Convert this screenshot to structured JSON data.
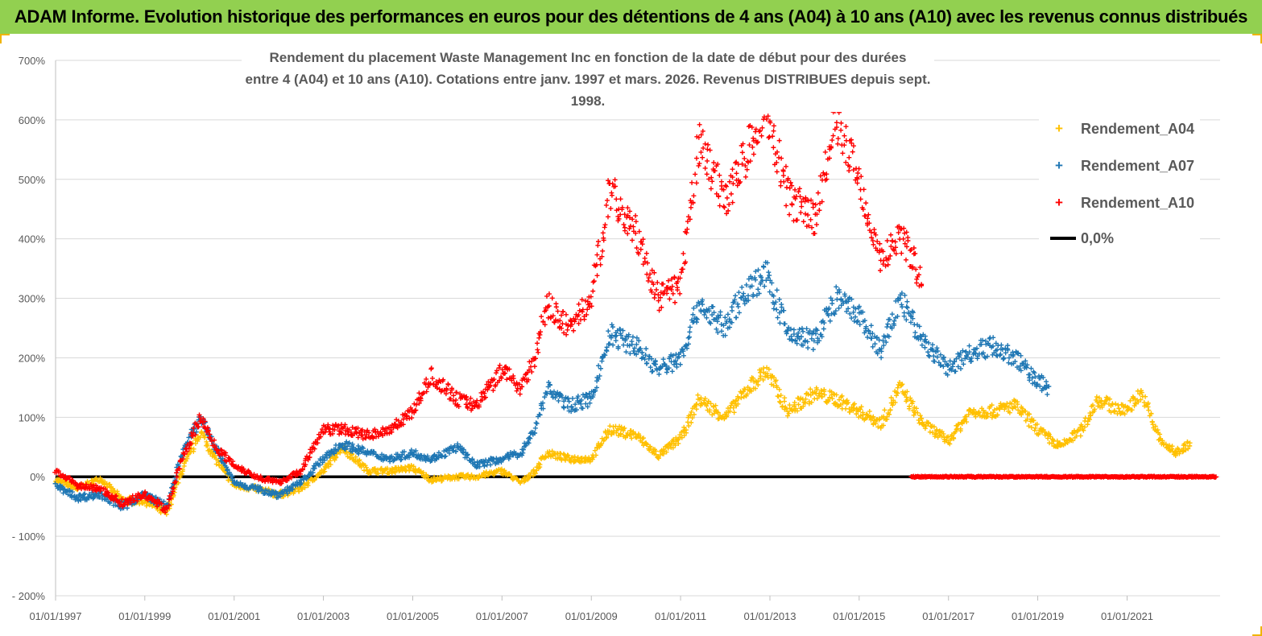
{
  "banner": {
    "title": "ADAM Informe. Evolution historique des performances en euros pour des détentions de 4 ans (A04) à 10 ans (A10) avec les revenus connus distribués",
    "background": "#92d050"
  },
  "chart_data": {
    "type": "scatter",
    "title": "Rendement du placement Waste Management Inc en fonction de la date de début pour des durées entre 4 (A04) et 10 ans (A10). Cotations entre janv. 1997 et mars. 2026. Revenus DISTRIBUES depuis sept. 1998.",
    "title_lines": [
      "Rendement du placement Waste Management Inc en fonction de la date de début pour des durées",
      "entre 4 (A04) et 10 ans (A10). Cotations entre janv. 1997 et mars. 2026. Revenus DISTRIBUES depuis sept. 1998."
    ],
    "xlabel": "",
    "ylabel": "",
    "x_axis": {
      "type": "date",
      "min": "1997-01-01",
      "max": "2023-02-01",
      "tick_labels": [
        "01/01/1997",
        "01/01/1999",
        "01/01/2001",
        "01/01/2003",
        "01/01/2005",
        "01/01/2007",
        "01/01/2009",
        "01/01/2011",
        "01/01/2013",
        "01/01/2015",
        "01/01/2017",
        "01/01/2019",
        "01/01/2021"
      ]
    },
    "y_axis": {
      "unit": "%",
      "ylim": [
        -200,
        700
      ],
      "tick_values": [
        -200,
        -100,
        0,
        100,
        200,
        300,
        400,
        500,
        600,
        700
      ],
      "tick_labels": [
        "- 200%",
        "- 100%",
        "0%",
        "100%",
        "200%",
        "300%",
        "400%",
        "500%",
        "600%",
        "700%"
      ]
    },
    "grid": "horizontal",
    "legend_placement": "right",
    "legend": [
      "Rendement_A04",
      "Rendement_A07",
      "Rendement_A10",
      "0,0%"
    ],
    "series": [
      {
        "name": "Rendement_A04",
        "color": "#ffc000",
        "marker": "+",
        "points": [
          [
            "1997-01-01",
            -5
          ],
          [
            "1997-07-01",
            -20
          ],
          [
            "1998-01-01",
            -3
          ],
          [
            "1998-07-01",
            -40
          ],
          [
            "1999-01-01",
            -40
          ],
          [
            "1999-07-01",
            -62
          ],
          [
            "1999-11-01",
            10
          ],
          [
            "2000-04-01",
            75
          ],
          [
            "2000-08-01",
            30
          ],
          [
            "2001-01-01",
            -15
          ],
          [
            "2001-07-01",
            -20
          ],
          [
            "2002-01-01",
            -30
          ],
          [
            "2002-07-01",
            -20
          ],
          [
            "2003-01-01",
            10
          ],
          [
            "2003-06-01",
            50
          ],
          [
            "2004-01-01",
            10
          ],
          [
            "2004-07-01",
            10
          ],
          [
            "2005-01-01",
            15
          ],
          [
            "2005-06-01",
            -5
          ],
          [
            "2006-01-01",
            0
          ],
          [
            "2006-06-01",
            0
          ],
          [
            "2007-01-01",
            10
          ],
          [
            "2007-06-01",
            -10
          ],
          [
            "2007-10-01",
            10
          ],
          [
            "2008-01-01",
            40
          ],
          [
            "2008-07-01",
            30
          ],
          [
            "2009-01-01",
            30
          ],
          [
            "2009-06-01",
            80
          ],
          [
            "2010-01-01",
            70
          ],
          [
            "2010-07-01",
            35
          ],
          [
            "2011-01-01",
            65
          ],
          [
            "2011-06-01",
            130
          ],
          [
            "2012-01-01",
            100
          ],
          [
            "2012-06-01",
            140
          ],
          [
            "2012-12-01",
            180
          ],
          [
            "2013-06-01",
            110
          ],
          [
            "2014-01-01",
            140
          ],
          [
            "2014-07-01",
            130
          ],
          [
            "2015-01-01",
            110
          ],
          [
            "2015-07-01",
            90
          ],
          [
            "2015-12-01",
            150
          ],
          [
            "2016-06-01",
            90
          ],
          [
            "2017-01-01",
            60
          ],
          [
            "2017-07-01",
            110
          ],
          [
            "2018-01-01",
            110
          ],
          [
            "2018-07-01",
            120
          ],
          [
            "2019-01-01",
            80
          ],
          [
            "2019-07-01",
            50
          ],
          [
            "2020-01-01",
            80
          ],
          [
            "2020-05-01",
            130
          ],
          [
            "2020-12-01",
            110
          ],
          [
            "2021-05-01",
            140
          ],
          [
            "2021-10-01",
            60
          ],
          [
            "2022-02-01",
            40
          ],
          [
            "2022-06-01",
            55
          ]
        ]
      },
      {
        "name": "Rendement_A07",
        "color": "#1f77b4",
        "marker": "+",
        "points": [
          [
            "1997-01-01",
            -15
          ],
          [
            "1997-07-01",
            -35
          ],
          [
            "1998-01-01",
            -30
          ],
          [
            "1998-07-01",
            -50
          ],
          [
            "1999-01-01",
            -30
          ],
          [
            "1999-07-01",
            -50
          ],
          [
            "1999-11-01",
            40
          ],
          [
            "2000-04-01",
            100
          ],
          [
            "2000-08-01",
            50
          ],
          [
            "2001-01-01",
            -10
          ],
          [
            "2001-07-01",
            -20
          ],
          [
            "2002-01-01",
            -30
          ],
          [
            "2002-07-01",
            -10
          ],
          [
            "2003-01-01",
            30
          ],
          [
            "2003-06-01",
            55
          ],
          [
            "2004-01-01",
            40
          ],
          [
            "2004-07-01",
            30
          ],
          [
            "2005-01-01",
            40
          ],
          [
            "2005-06-01",
            30
          ],
          [
            "2006-01-01",
            50
          ],
          [
            "2006-06-01",
            20
          ],
          [
            "2007-01-01",
            30
          ],
          [
            "2007-06-01",
            40
          ],
          [
            "2007-10-01",
            80
          ],
          [
            "2008-01-01",
            150
          ],
          [
            "2008-07-01",
            120
          ],
          [
            "2009-01-01",
            130
          ],
          [
            "2009-06-01",
            240
          ],
          [
            "2010-01-01",
            220
          ],
          [
            "2010-07-01",
            180
          ],
          [
            "2011-01-01",
            200
          ],
          [
            "2011-06-01",
            290
          ],
          [
            "2012-01-01",
            250
          ],
          [
            "2012-06-01",
            310
          ],
          [
            "2012-12-01",
            340
          ],
          [
            "2013-06-01",
            240
          ],
          [
            "2014-01-01",
            230
          ],
          [
            "2014-07-01",
            300
          ],
          [
            "2015-01-01",
            270
          ],
          [
            "2015-07-01",
            210
          ],
          [
            "2015-12-01",
            300
          ],
          [
            "2016-06-01",
            230
          ],
          [
            "2017-01-01",
            180
          ],
          [
            "2017-07-01",
            210
          ],
          [
            "2018-01-01",
            220
          ],
          [
            "2018-07-01",
            200
          ],
          [
            "2019-01-01",
            160
          ],
          [
            "2019-04-01",
            150
          ]
        ]
      },
      {
        "name": "Rendement_A10",
        "color": "#ff0000",
        "marker": "+",
        "points": [
          [
            "1997-01-01",
            10
          ],
          [
            "1997-07-01",
            -15
          ],
          [
            "1998-01-01",
            -20
          ],
          [
            "1998-07-01",
            -45
          ],
          [
            "1999-01-01",
            -30
          ],
          [
            "1999-07-01",
            -55
          ],
          [
            "1999-11-01",
            30
          ],
          [
            "2000-04-01",
            100
          ],
          [
            "2000-08-01",
            50
          ],
          [
            "2001-01-01",
            20
          ],
          [
            "2001-07-01",
            0
          ],
          [
            "2002-01-01",
            -10
          ],
          [
            "2002-07-01",
            10
          ],
          [
            "2003-01-01",
            80
          ],
          [
            "2003-06-01",
            80
          ],
          [
            "2004-01-01",
            70
          ],
          [
            "2004-07-01",
            80
          ],
          [
            "2005-01-01",
            110
          ],
          [
            "2005-06-01",
            170
          ],
          [
            "2006-01-01",
            130
          ],
          [
            "2006-06-01",
            120
          ],
          [
            "2007-01-01",
            180
          ],
          [
            "2007-06-01",
            150
          ],
          [
            "2007-10-01",
            200
          ],
          [
            "2008-01-01",
            290
          ],
          [
            "2008-07-01",
            250
          ],
          [
            "2009-01-01",
            300
          ],
          [
            "2009-06-01",
            480
          ],
          [
            "2010-01-01",
            410
          ],
          [
            "2010-07-01",
            300
          ],
          [
            "2011-01-01",
            320
          ],
          [
            "2011-06-01",
            560
          ],
          [
            "2012-01-01",
            470
          ],
          [
            "2012-06-01",
            530
          ],
          [
            "2012-12-01",
            620
          ],
          [
            "2013-06-01",
            470
          ],
          [
            "2014-01-01",
            430
          ],
          [
            "2014-07-01",
            600
          ],
          [
            "2015-01-01",
            500
          ],
          [
            "2015-07-01",
            360
          ],
          [
            "2015-12-01",
            410
          ],
          [
            "2016-06-01",
            330
          ]
        ]
      },
      {
        "name": "0,0%",
        "color": "#000000",
        "type": "line",
        "points": [
          [
            "1997-01-01",
            0
          ],
          [
            "2016-03-01",
            0
          ]
        ]
      }
    ],
    "extra": {
      "note": "Rendement_A10 markers continue at 0% from 2016-03-01 to 2023-01-01"
    }
  }
}
